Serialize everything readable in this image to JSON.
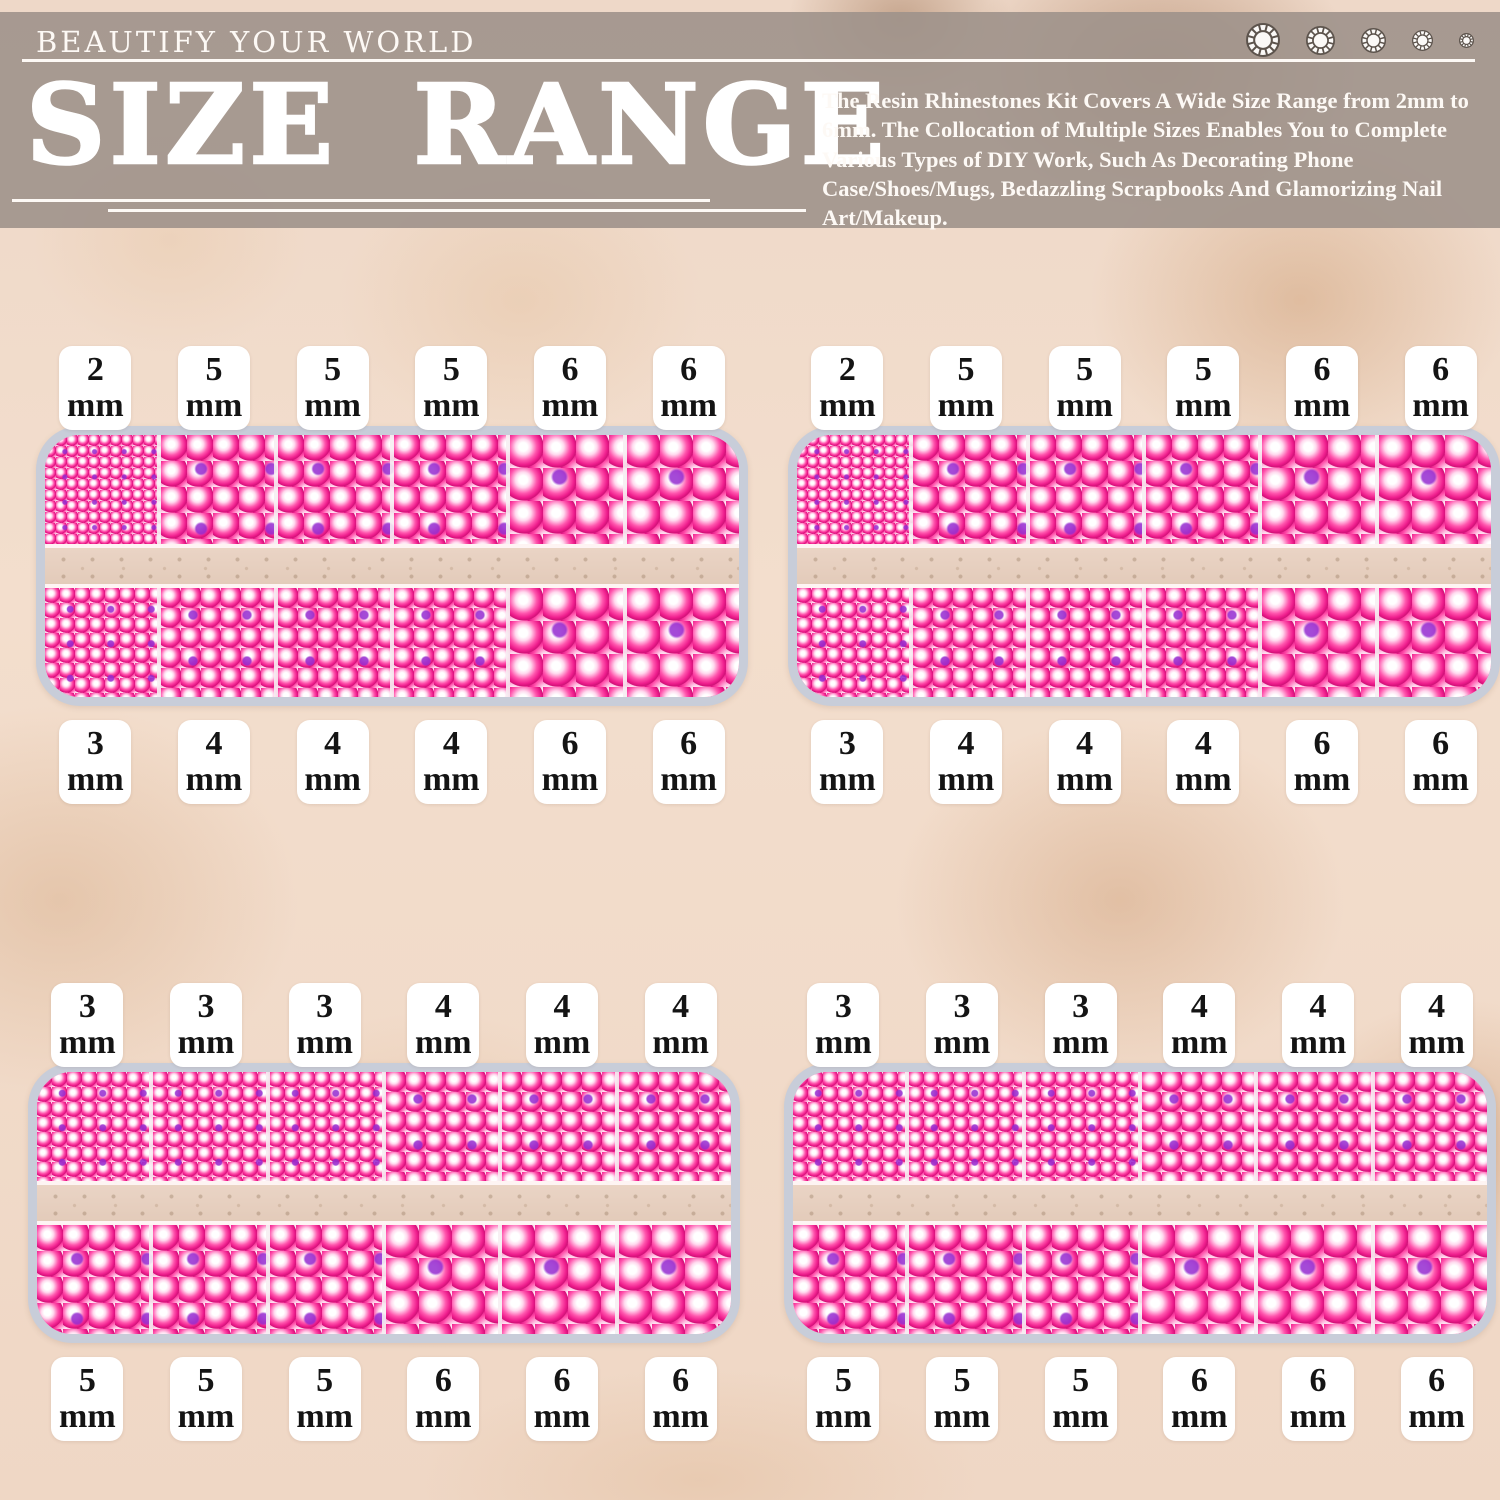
{
  "header": {
    "brand": "BEAUTIFY YOUR WORLD",
    "title": "SIZE RANGE",
    "description": "The Resin Rhinestones Kit Covers A Wide Size Range from 2mm to 6mm. The Collocation of Multiple Sizes Enables You to Complete Various Types of DIY Work, Such As Decorating Phone Case/Shoes/Mugs, Bedazzling Scrapbooks And Glamorizing Nail Art/Makeup.",
    "gem_icons": [
      {
        "name": "rhinestone-icon",
        "diameter": 34
      },
      {
        "name": "rhinestone-icon",
        "diameter": 29
      },
      {
        "name": "rhinestone-icon",
        "diameter": 25
      },
      {
        "name": "rhinestone-icon",
        "diameter": 21
      },
      {
        "name": "rhinestone-icon",
        "diameter": 15
      }
    ]
  },
  "size_unit": "mm",
  "trays": [
    {
      "position": "top-left",
      "top_sizes": [
        "2",
        "5",
        "5",
        "5",
        "6",
        "6"
      ],
      "bottom_sizes": [
        "3",
        "4",
        "4",
        "4",
        "6",
        "6"
      ]
    },
    {
      "position": "top-right",
      "top_sizes": [
        "2",
        "5",
        "5",
        "5",
        "6",
        "6"
      ],
      "bottom_sizes": [
        "3",
        "4",
        "4",
        "4",
        "6",
        "6"
      ]
    },
    {
      "position": "bottom-left",
      "top_sizes": [
        "3",
        "3",
        "3",
        "4",
        "4",
        "4"
      ],
      "bottom_sizes": [
        "5",
        "5",
        "5",
        "6",
        "6",
        "6"
      ]
    },
    {
      "position": "bottom-right",
      "top_sizes": [
        "3",
        "3",
        "3",
        "4",
        "4",
        "4"
      ],
      "bottom_sizes": [
        "5",
        "5",
        "5",
        "6",
        "6",
        "6"
      ]
    }
  ],
  "colors": {
    "banner": "#9e928b",
    "background": "#f1dbca",
    "stone_pink": "#f84aa5",
    "tray_border": "#c8cdd9",
    "label_bg": "#ffffff",
    "text_light": "#fdf9f5",
    "text_dark": "#141414"
  }
}
